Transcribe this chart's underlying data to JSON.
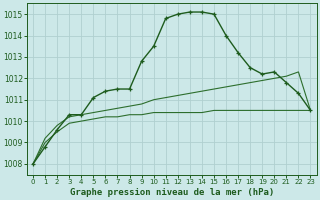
{
  "title": "Graphe pression niveau de la mer (hPa)",
  "background_color": "#cce8e8",
  "grid_color": "#b0d0d0",
  "line_color_main": "#1e5c1e",
  "line_color_thin1": "#2d6e2d",
  "line_color_thin2": "#2d6e2d",
  "xlim": [
    -0.5,
    23.5
  ],
  "ylim": [
    1007.5,
    1015.5
  ],
  "yticks": [
    1008,
    1009,
    1010,
    1011,
    1012,
    1013,
    1014,
    1015
  ],
  "xticks": [
    0,
    1,
    2,
    3,
    4,
    5,
    6,
    7,
    8,
    9,
    10,
    11,
    12,
    13,
    14,
    15,
    16,
    17,
    18,
    19,
    20,
    21,
    22,
    23
  ],
  "series_main": [
    1008.0,
    1008.8,
    1009.6,
    1010.3,
    1010.3,
    1011.1,
    1011.4,
    1011.5,
    1011.5,
    1012.8,
    1013.5,
    1014.8,
    1015.0,
    1015.1,
    1015.1,
    1015.0,
    1014.0,
    1013.2,
    1012.5,
    1012.2,
    1012.3,
    1011.8,
    1011.3,
    1010.5
  ],
  "series_thin_upper": [
    1008.0,
    1009.2,
    1009.8,
    1010.2,
    1010.3,
    1010.4,
    1010.5,
    1010.6,
    1010.7,
    1010.8,
    1011.0,
    1011.1,
    1011.2,
    1011.3,
    1011.4,
    1011.5,
    1011.6,
    1011.7,
    1011.8,
    1011.9,
    1012.0,
    1012.1,
    1012.3,
    1010.5
  ],
  "series_thin_lower": [
    1008.0,
    1009.0,
    1009.5,
    1009.9,
    1010.0,
    1010.1,
    1010.2,
    1010.2,
    1010.3,
    1010.3,
    1010.4,
    1010.4,
    1010.4,
    1010.4,
    1010.4,
    1010.5,
    1010.5,
    1010.5,
    1010.5,
    1010.5,
    1010.5,
    1010.5,
    1010.5,
    1010.5
  ]
}
